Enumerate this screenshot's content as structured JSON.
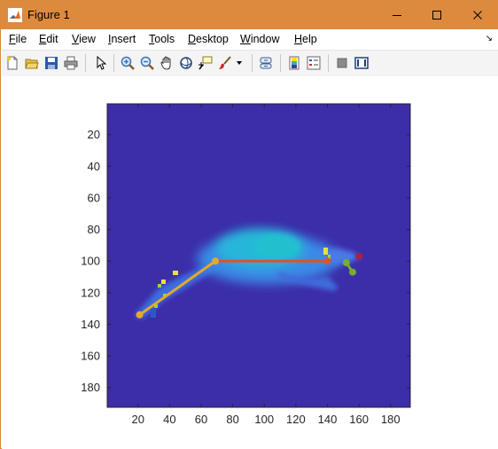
{
  "window": {
    "title": "Figure 1",
    "controls": {
      "minimize": "minimize",
      "maximize": "maximize",
      "close": "close"
    }
  },
  "menu": [
    {
      "key": "F",
      "rest": "ile"
    },
    {
      "key": "E",
      "rest": "dit"
    },
    {
      "key": "V",
      "rest": "iew"
    },
    {
      "key": "I",
      "rest": "nsert"
    },
    {
      "key": "T",
      "rest": "ools"
    },
    {
      "key": "D",
      "rest": "esktop"
    },
    {
      "key": "W",
      "rest": "indow"
    },
    {
      "key": "H",
      "rest": "elp"
    }
  ],
  "toolbar": [
    "new-figure-icon",
    "open-file-icon",
    "save-icon",
    "print-icon",
    "pointer-icon",
    "zoom-in-icon",
    "zoom-out-icon",
    "pan-icon",
    "rotate-3d-icon",
    "data-cursor-icon",
    "brush-icon",
    "link-plot-icon",
    "colorbar-icon",
    "legend-icon",
    "hide-plot-tools-icon",
    "show-plot-tools-icon"
  ],
  "colors": {
    "titlebar": "#dd8a3f",
    "background": "#3c2da8",
    "skeleton_body": "#e3a92c",
    "skeleton_head": "#d7562a",
    "skeleton_marker_red": "#a8204a",
    "skeleton_marker_green": "#77ac30"
  },
  "chart_data": {
    "type": "heatmap",
    "title": "",
    "xlabel": "",
    "ylabel": "",
    "xlim": [
      0.5,
      192.5
    ],
    "ylim": [
      0.5,
      192.5
    ],
    "y_reversed": true,
    "xticks": [
      20,
      40,
      60,
      80,
      100,
      120,
      140,
      160,
      180
    ],
    "yticks": [
      20,
      40,
      60,
      80,
      100,
      120,
      140,
      160,
      180
    ],
    "grid": false,
    "skeleton": {
      "segments": [
        {
          "color": "#e3a92c",
          "points": [
            [
              21,
              134
            ],
            [
              69,
              100
            ]
          ]
        },
        {
          "color": "#d7562a",
          "points": [
            [
              69,
              100
            ],
            [
              140,
              100
            ]
          ]
        },
        {
          "color": "#77ac30",
          "points": [
            [
              152,
              101
            ],
            [
              156,
              107
            ]
          ]
        }
      ],
      "markers": [
        {
          "x": 21,
          "y": 134,
          "color": "#e3a92c"
        },
        {
          "x": 69,
          "y": 100,
          "color": "#e3a92c"
        },
        {
          "x": 140,
          "y": 100,
          "color": "#d7562a"
        },
        {
          "x": 160,
          "y": 97,
          "color": "#a8204a"
        },
        {
          "x": 152,
          "y": 101,
          "color": "#77ac30"
        },
        {
          "x": 156,
          "y": 107,
          "color": "#77ac30"
        }
      ]
    }
  }
}
